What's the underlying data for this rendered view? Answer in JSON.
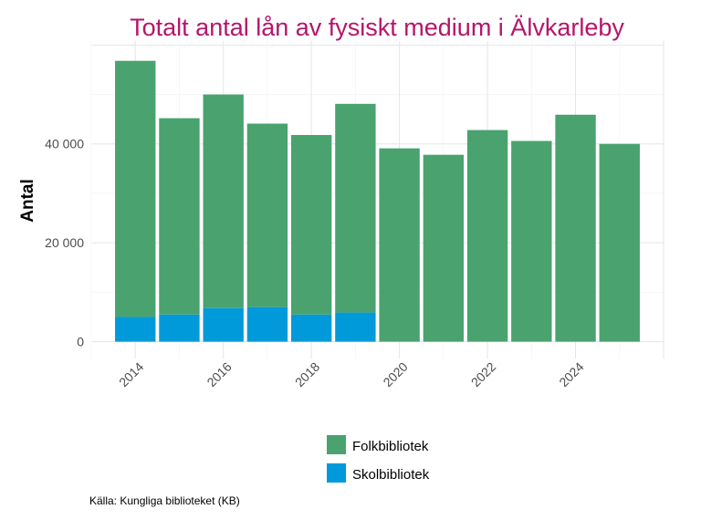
{
  "chart_data": {
    "type": "bar",
    "stacked": true,
    "title": "Totalt antal lån av fysiskt medium i Älvkarleby",
    "xlabel": "",
    "ylabel": "Antal",
    "categories": [
      2014,
      2015,
      2016,
      2017,
      2018,
      2019,
      2020,
      2021,
      2022,
      2023,
      2024,
      2025
    ],
    "series": [
      {
        "name": "Skolbibliotek",
        "color": "#009ADA",
        "values": [
          5000,
          5500,
          6800,
          7000,
          5500,
          5900,
          0,
          0,
          0,
          0,
          0,
          0
        ]
      },
      {
        "name": "Folkbibliotek",
        "color": "#4AA36F",
        "values": [
          51800,
          39700,
          43200,
          37100,
          36300,
          42200,
          39100,
          37800,
          42800,
          40600,
          45900,
          40000
        ]
      }
    ],
    "x_ticks": [
      "2014",
      "2016",
      "2018",
      "2020",
      "2022",
      "2024"
    ],
    "y_ticks": [
      "0",
      "20 000",
      "40 000"
    ],
    "y_tick_values": [
      0,
      20000,
      40000
    ],
    "ylim": [
      -3400,
      60800
    ],
    "xlim": [
      2013,
      2026
    ],
    "grid": true,
    "legend_placement": "bottom",
    "legend": [
      "Folkbibliotek",
      "Skolbibliotek"
    ],
    "caption": "Källa: Kungliga biblioteket (KB)",
    "title_color": "#B5156B"
  }
}
